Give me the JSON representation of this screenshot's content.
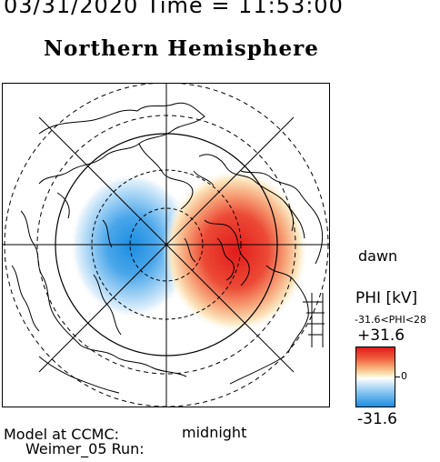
{
  "header": {
    "datetime": "03/31/2020 Time = 11:53:00"
  },
  "title": "Northern Hemisphere",
  "map": {
    "projection": "polar stereographic, north pole centered",
    "labels": {
      "dawn": "dawn",
      "midnight": "midnight"
    },
    "potential_pattern": "two-cell convection: negative cell on dusk side (blue), positive cell on dawn side (red)"
  },
  "colorbar": {
    "title": "PHI [kV]",
    "range_text": "-31.6<PHI<28",
    "max_label": "+31.6",
    "zero_label": "0",
    "min_label": "-31.6",
    "colors": {
      "positive": "#e21b1b",
      "neutral": "#ffffff",
      "negative": "#1d8de0"
    }
  },
  "footer": {
    "line1": "Model at CCMC:",
    "line2": "Weimer_05 Run:"
  }
}
